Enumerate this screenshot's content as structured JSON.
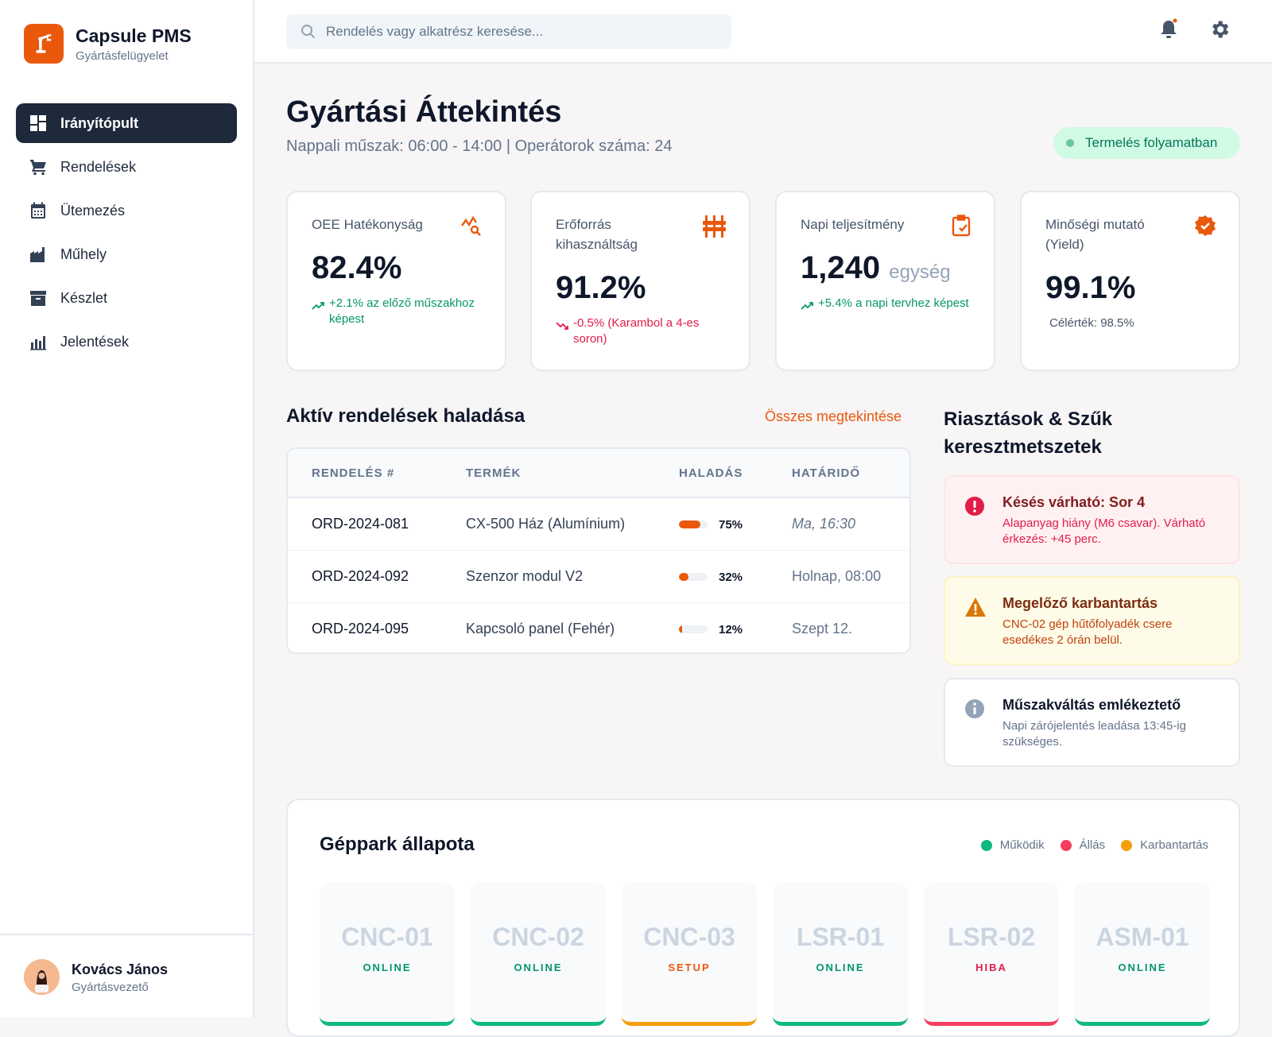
{
  "brand": {
    "title": "Capsule PMS",
    "subtitle": "Gyártásfelügyelet"
  },
  "nav": [
    {
      "label": "Irányítópult",
      "icon": "dashboard-icon",
      "active": true
    },
    {
      "label": "Rendelések",
      "icon": "cart-icon"
    },
    {
      "label": "Ütemezés",
      "icon": "calendar-icon"
    },
    {
      "label": "Műhely",
      "icon": "factory-icon"
    },
    {
      "label": "Készlet",
      "icon": "archive-icon"
    },
    {
      "label": "Jelentések",
      "icon": "bar-chart-icon"
    }
  ],
  "user": {
    "name": "Kovács János",
    "role": "Gyártásvezető"
  },
  "search": {
    "placeholder": "Rendelés vagy alkatrész keresése..."
  },
  "page": {
    "title": "Gyártási Áttekintés",
    "subtitle": "Nappali műszak: 06:00 - 14:00 | Operátorok száma: 24",
    "status": "Termelés folyamatban"
  },
  "kpis": [
    {
      "label": "OEE Hatékonyság",
      "value": "82.4%",
      "delta": "+2.1% az előző műszakhoz képest",
      "trend": "up"
    },
    {
      "label": "Erőforrás kihasználtság",
      "value": "91.2%",
      "delta": "-0.5% (Karambol a 4-es soron)",
      "trend": "down"
    },
    {
      "label": "Napi teljesítmény",
      "value": "1,240",
      "unit": "egység",
      "delta": "+5.4% a napi tervhez képest",
      "trend": "up"
    },
    {
      "label": "Minőségi mutató (Yield)",
      "value": "99.1%",
      "delta": "Célérték: 98.5%",
      "trend": "neutral"
    }
  ],
  "orders": {
    "title": "Aktív rendelések haladása",
    "view_all": "Összes megtekintése",
    "columns": [
      "RENDELÉS #",
      "TERMÉK",
      "HALADÁS",
      "HATÁRIDŐ"
    ],
    "rows": [
      {
        "id": "ORD-2024-081",
        "product": "CX-500 Ház (Alumínium)",
        "progress": 75,
        "progress_label": "75%",
        "due": "Ma, 16:30"
      },
      {
        "id": "ORD-2024-092",
        "product": "Szenzor modul V2",
        "progress": 32,
        "progress_label": "32%",
        "due": "Holnap, 08:00"
      },
      {
        "id": "ORD-2024-095",
        "product": "Kapcsoló panel (Fehér)",
        "progress": 12,
        "progress_label": "12%",
        "due": "Szept 12."
      }
    ]
  },
  "alerts": {
    "title": "Riasztások & Szűk keresztmetszetek",
    "items": [
      {
        "title": "Késés várható: Sor 4",
        "desc": "Alapanyag hiány (M6 csavar). Várható érkezés: +45 perc.",
        "level": "error"
      },
      {
        "title": "Megelőző karbantartás",
        "desc": "CNC-02 gép hűtőfolyadék csere esedékes 2 órán belül.",
        "level": "warning"
      },
      {
        "title": "Műszakváltás emlékeztető",
        "desc": "Napi zárójelentés leadása 13:45-ig szükséges.",
        "level": "info"
      }
    ]
  },
  "fleet": {
    "title": "Géppark állapota",
    "legend": [
      "Működik",
      "Állás",
      "Karbantartás"
    ],
    "machines": [
      {
        "name": "CNC-01",
        "status": "ONLINE"
      },
      {
        "name": "CNC-02",
        "status": "ONLINE"
      },
      {
        "name": "CNC-03",
        "status": "SETUP"
      },
      {
        "name": "LSR-01",
        "status": "ONLINE"
      },
      {
        "name": "LSR-02",
        "status": "HIBA"
      },
      {
        "name": "ASM-01",
        "status": "ONLINE"
      }
    ]
  },
  "colors": {
    "accent": "#ea580c",
    "sidebar_active": "#1e293b",
    "online": "#10b981",
    "error": "#f43f5e",
    "maintenance": "#f59e0b"
  }
}
